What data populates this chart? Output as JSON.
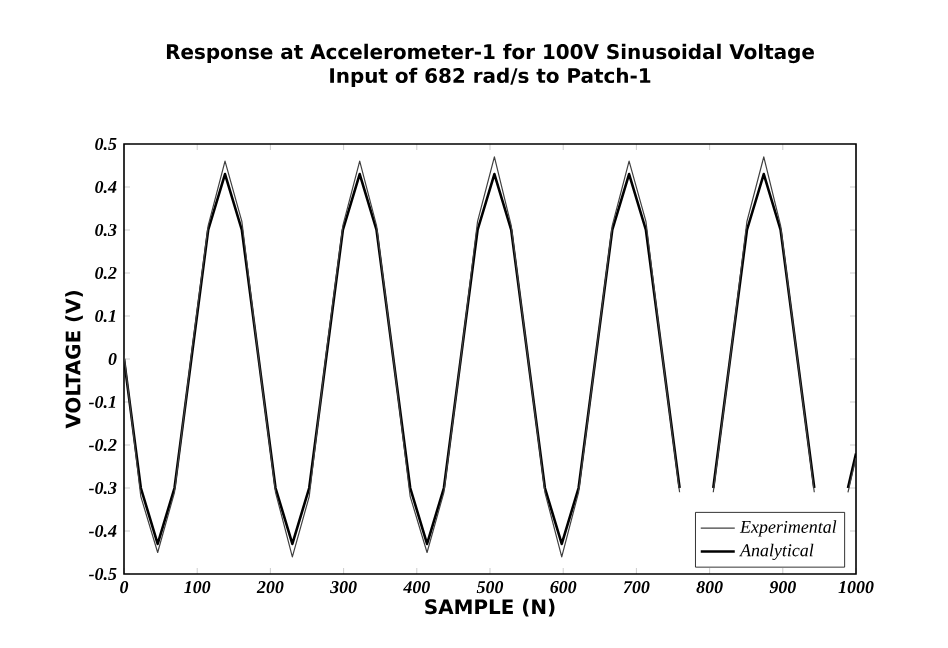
{
  "chart_data": {
    "type": "line",
    "title": "Response at Accelerometer-1 for 100V Sinusoidal Voltage",
    "subtitle": "Input of 682 rad/s to Patch-1",
    "xlabel": "SAMPLE (N)",
    "ylabel": "VOLTAGE (V)",
    "x": [
      0,
      23,
      46,
      69,
      92,
      115,
      138,
      161,
      184,
      207,
      230,
      253,
      276,
      299,
      322,
      345,
      368,
      391,
      414,
      437,
      460,
      483,
      506,
      529,
      552,
      575,
      598,
      621,
      644,
      667,
      690,
      713,
      736,
      759,
      782,
      805,
      828,
      851,
      874,
      897,
      920,
      943,
      966,
      989,
      1000
    ],
    "series": [
      {
        "name": "Experimental",
        "color": "#404040",
        "values": [
          0.01,
          -0.32,
          -0.45,
          -0.31,
          0.01,
          0.31,
          0.46,
          0.32,
          0,
          -0.31,
          -0.46,
          -0.32,
          0.01,
          0.31,
          0.46,
          0.31,
          0,
          -0.32,
          -0.45,
          -0.31,
          0,
          0.32,
          0.47,
          0.31,
          0,
          -0.31,
          -0.46,
          -0.31,
          0,
          0.31,
          0.46,
          0.32,
          0,
          -0.31,
          null,
          -0.31,
          0,
          0.32,
          0.47,
          0.31,
          0,
          -0.31,
          null,
          -0.31,
          -0.23
        ]
      },
      {
        "name": "Analytical",
        "color": "#000000",
        "values": [
          0,
          -0.3,
          -0.43,
          -0.3,
          0,
          0.3,
          0.43,
          0.3,
          0,
          -0.3,
          -0.43,
          -0.3,
          0,
          0.3,
          0.43,
          0.3,
          0,
          -0.3,
          -0.43,
          -0.3,
          0,
          0.3,
          0.43,
          0.3,
          0,
          -0.3,
          -0.43,
          -0.3,
          0,
          0.3,
          0.43,
          0.3,
          0,
          -0.3,
          null,
          -0.3,
          0,
          0.3,
          0.43,
          0.3,
          0,
          -0.3,
          null,
          -0.3,
          -0.22
        ]
      }
    ],
    "xlim": [
      0,
      1000
    ],
    "ylim": [
      -0.5,
      0.5
    ],
    "xticks": [
      0,
      100,
      200,
      300,
      400,
      500,
      600,
      700,
      800,
      900,
      1000
    ],
    "yticks": [
      {
        "value": -0.5,
        "label": "-0.5"
      },
      {
        "value": -0.4,
        "label": "-0.4"
      },
      {
        "value": -0.3,
        "label": "-0.3"
      },
      {
        "value": -0.2,
        "label": "-0.2"
      },
      {
        "value": -0.1,
        "label": "-0.1"
      },
      {
        "value": 0,
        "label": "0"
      },
      {
        "value": 0.1,
        "label": "0.1"
      },
      {
        "value": 0.2,
        "label": "0.2"
      },
      {
        "value": 0.3,
        "label": "0.3"
      },
      {
        "value": 0.4,
        "label": "0.4"
      },
      {
        "value": 0.5,
        "label": "0.5"
      }
    ],
    "legend": "bottom right",
    "grid": false,
    "marker": "none",
    "line_style": "solid"
  }
}
